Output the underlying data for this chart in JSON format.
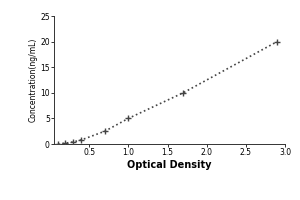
{
  "x_data": [
    0.1,
    0.194,
    0.294,
    0.4,
    0.7,
    1.0,
    1.7,
    2.9
  ],
  "y_data": [
    0.0,
    0.16,
    0.4,
    0.8,
    2.5,
    5.0,
    10.0,
    20.0
  ],
  "xlabel": "Optical Density",
  "ylabel": "Concentration(ng/mL)",
  "xlim": [
    0.05,
    3.0
  ],
  "ylim": [
    0,
    25
  ],
  "xticks": [
    0.5,
    1.0,
    1.5,
    2.0,
    2.5,
    3.0
  ],
  "yticks": [
    0,
    5,
    10,
    15,
    20,
    25
  ],
  "line_color": "#444444",
  "marker_color": "#444444",
  "background_color": "#ffffff",
  "plot_bg_color": "#ffffff",
  "title": "",
  "figsize": [
    3.0,
    2.0
  ],
  "dpi": 100
}
